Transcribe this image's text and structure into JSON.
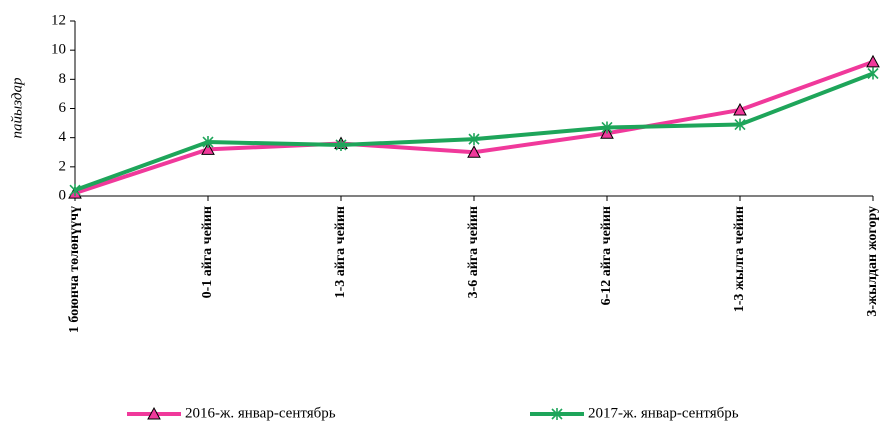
{
  "chart_data": {
    "type": "line",
    "y_label": "пайыздар",
    "categories": [
      "1 боюнча төлөнүүчү",
      "0-1 айга чейин",
      "1-3 айга чейин",
      "3-6 айга чейин",
      "6-12 айга чейин",
      "1-3 жылга чейин",
      "3-жылдан жогору"
    ],
    "series": [
      {
        "name": "2016-ж. январ-сентябрь",
        "color": "#f0399b",
        "marker": "triangle",
        "values": [
          0.2,
          3.2,
          3.6,
          3.0,
          4.3,
          5.9,
          9.2
        ]
      },
      {
        "name": "2017-ж. январ-сентябрь",
        "color": "#1ea55a",
        "marker": "asterisk",
        "values": [
          0.4,
          3.7,
          3.5,
          3.9,
          4.7,
          4.9,
          8.4
        ]
      }
    ],
    "ylim": [
      0,
      12
    ],
    "yticks": [
      0,
      2,
      4,
      6,
      8,
      10,
      12
    ],
    "grid": false,
    "legend": "bottom"
  }
}
